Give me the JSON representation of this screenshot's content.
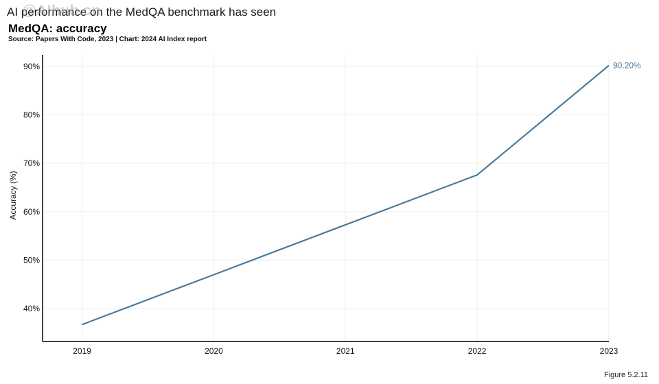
{
  "headline": "AI performance on the MedQA benchmark has seen",
  "watermark": "@AIhub.cn",
  "figure_label": "Figure 5.2.11",
  "colors": {
    "line": "#4a7a9b",
    "grid": "#efefef",
    "axis": "#000000"
  },
  "chart_data": {
    "type": "line",
    "title": "MedQA: accuracy",
    "source": "Source: Papers With Code, 2023 | Chart: 2024 AI Index report",
    "xlabel": "",
    "ylabel": "Accuracy (%)",
    "x": [
      2019,
      2020,
      2021,
      2022,
      2023
    ],
    "y_tick_labels": [
      "40%",
      "50%",
      "60%",
      "70%",
      "80%",
      "90%"
    ],
    "y_ticks": [
      40,
      50,
      60,
      70,
      80,
      90
    ],
    "ylim": [
      33.2,
      92.4
    ],
    "xlim": [
      2018.7,
      2023
    ],
    "series": [
      {
        "name": "MedQA accuracy",
        "points": [
          {
            "x": 2019,
            "y": 36.7
          },
          {
            "x": 2020,
            "y": 47.0
          },
          {
            "x": 2021,
            "y": 57.3
          },
          {
            "x": 2022,
            "y": 67.6
          },
          {
            "x": 2023,
            "y": 90.2
          }
        ],
        "end_label": "90.20%"
      }
    ]
  }
}
